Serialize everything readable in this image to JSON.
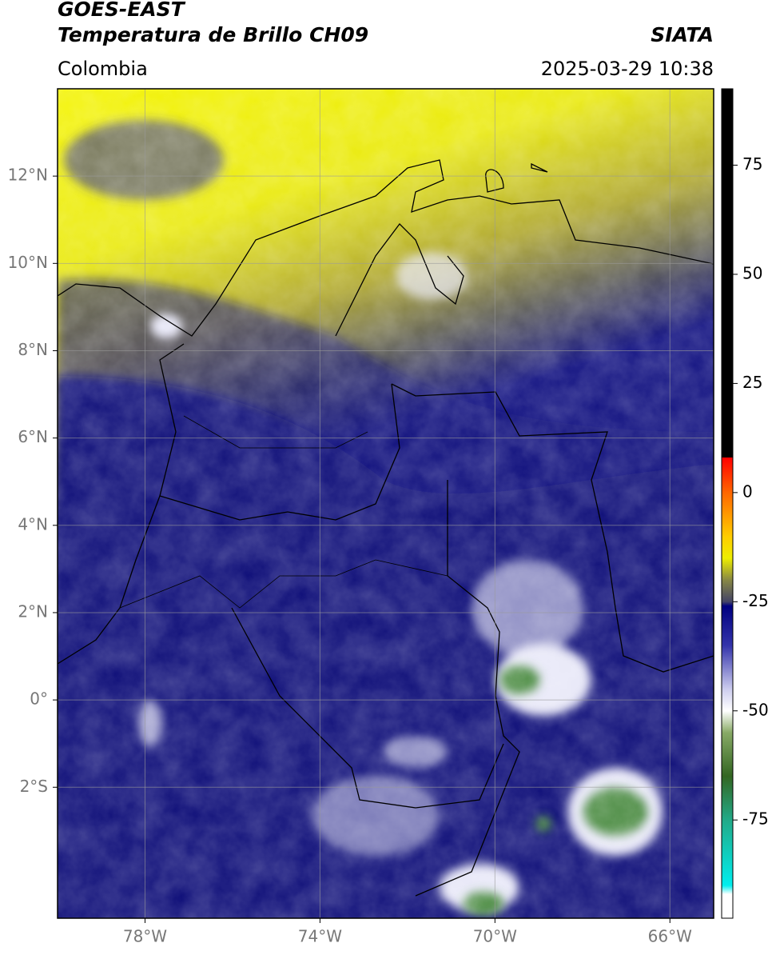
{
  "header": {
    "title": "GOES-EAST",
    "subtitle": "Temperatura de Brillo CH09",
    "source": "SIATA",
    "region": "Colombia",
    "datetime": "2025-03-29 10:38"
  },
  "map": {
    "lonlim": [
      -80,
      -65
    ],
    "latlim": [
      -5,
      14
    ],
    "grid": true,
    "xticks": [
      {
        "value": -78,
        "label": "78°W"
      },
      {
        "value": -74,
        "label": "74°W"
      },
      {
        "value": -70,
        "label": "70°W"
      },
      {
        "value": -66,
        "label": "66°W"
      }
    ],
    "yticks": [
      {
        "value": 12,
        "label": "12°N"
      },
      {
        "value": 10,
        "label": "10°N"
      },
      {
        "value": 8,
        "label": "8°N"
      },
      {
        "value": 6,
        "label": "6°N"
      },
      {
        "value": 4,
        "label": "4°N"
      },
      {
        "value": 2,
        "label": "2°N"
      },
      {
        "value": 0,
        "label": "0°"
      },
      {
        "value": -2,
        "label": "2°S"
      }
    ]
  },
  "colorbar": {
    "lim": [
      -97.5,
      92.5
    ],
    "ticks": [
      75,
      50,
      25,
      0,
      -25,
      -50,
      -75
    ],
    "stops": [
      {
        "value": 92.5,
        "color": "#000000"
      },
      {
        "value": 8,
        "color": "#000000"
      },
      {
        "value": 8,
        "color": "#ff0000"
      },
      {
        "value": 0,
        "color": "#ff6600"
      },
      {
        "value": -10,
        "color": "#ffcc00"
      },
      {
        "value": -15,
        "color": "#eeee00"
      },
      {
        "value": -20,
        "color": "#888844"
      },
      {
        "value": -25,
        "color": "#444466"
      },
      {
        "value": -26,
        "color": "#000080"
      },
      {
        "value": -35,
        "color": "#3333aa"
      },
      {
        "value": -45,
        "color": "#ccccee"
      },
      {
        "value": -50,
        "color": "#ffffff"
      },
      {
        "value": -55,
        "color": "#88aa66"
      },
      {
        "value": -65,
        "color": "#336622"
      },
      {
        "value": -75,
        "color": "#22aa88"
      },
      {
        "value": -90,
        "color": "#00eeee"
      },
      {
        "value": -92,
        "color": "#ffffff"
      },
      {
        "value": -97.5,
        "color": "#ffffff"
      }
    ]
  }
}
